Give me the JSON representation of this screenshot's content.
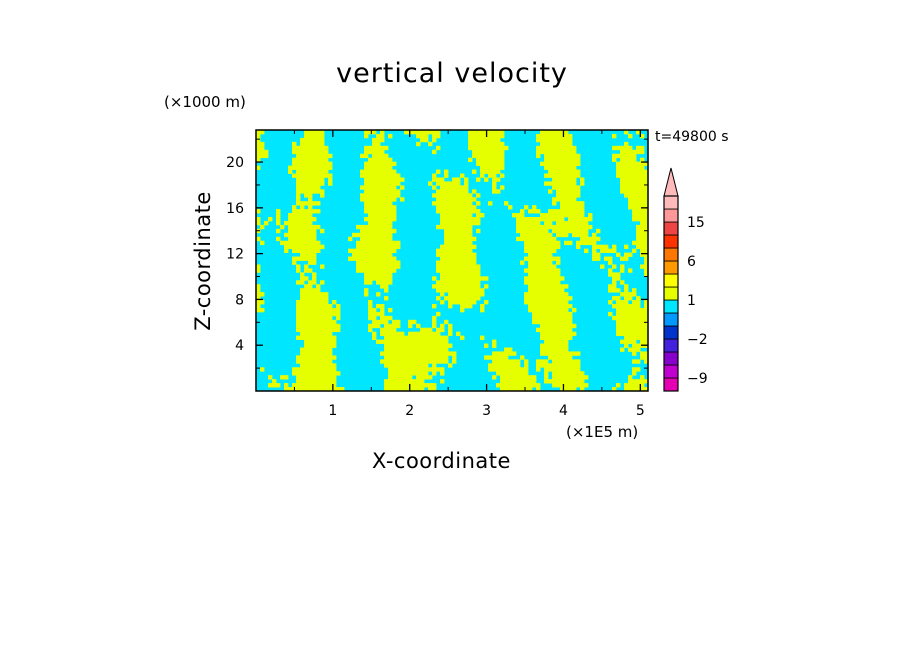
{
  "chart_data": {
    "type": "heatmap",
    "title": "vertical velocity",
    "xlabel": "X-coordinate",
    "ylabel": "Z-coordinate",
    "x_unit_label": "(×1E5 m)",
    "z_unit_label": "(×1000 m)",
    "time_label": "t=49800 s",
    "xlim": [
      0,
      5.1
    ],
    "ylim": [
      0,
      22.8
    ],
    "x_ticks": [
      1,
      2,
      3,
      4,
      5
    ],
    "x_tick_labels": [
      "1",
      "2",
      "3",
      "4",
      "5"
    ],
    "y_ticks": [
      4,
      8,
      12,
      16,
      20
    ],
    "y_tick_labels": [
      "4",
      "8",
      "12",
      "16",
      "20"
    ],
    "grid": false,
    "dominant_field_colors": {
      "negative_small": "#00e6ff",
      "positive_small": "#e6ff00"
    },
    "colorbar": {
      "levels": [
        -12,
        -9,
        -6,
        -4,
        -2,
        -1,
        0,
        1,
        2,
        3,
        6,
        9,
        12,
        15,
        18,
        24
      ],
      "colors": [
        "#e600b3",
        "#c000d0",
        "#8800cc",
        "#4422dd",
        "#0033cc",
        "#0099ff",
        "#00e6ff",
        "#e6ff00",
        "#ffff00",
        "#ff9900",
        "#ff7700",
        "#ff3300",
        "#ee4444",
        "#ff9999",
        "#ffbbbb"
      ],
      "extend_top": true,
      "tick_values": [
        15,
        6,
        1,
        -2,
        -9
      ],
      "tick_labels": [
        "15",
        "6",
        "1",
        "−2",
        "−9"
      ]
    }
  }
}
